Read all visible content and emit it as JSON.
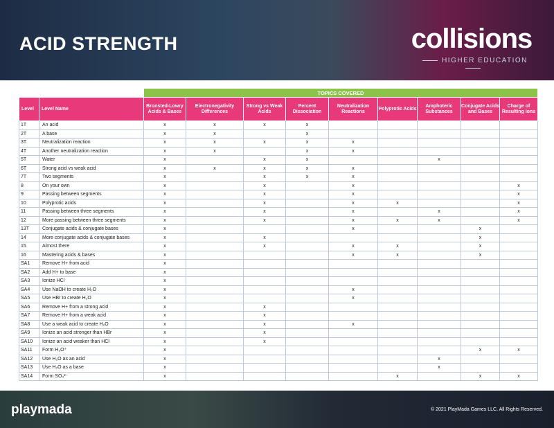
{
  "header": {
    "title": "ACID STRENGTH",
    "logo": "collisions",
    "logo_subtitle": "HIGHER EDUCATION"
  },
  "table": {
    "topics_label": "TOPICS COVERED",
    "columns": [
      "Level",
      "Level Name",
      "Bronsted-Lowry Acids & Bases",
      "Electronegativity Differences",
      "Strong vs Weak Acids",
      "Percent Dissociation",
      "Neutralization Reactions",
      "Polyprotic Acids",
      "Amphoteric Substances",
      "Conjugate Acids and Bases",
      "Charge of Resulting Ions"
    ],
    "rows": [
      {
        "level": "1T",
        "name": "An acid",
        "cells": [
          "x",
          "x",
          "x",
          "x",
          null,
          null,
          null,
          null,
          null
        ]
      },
      {
        "level": "2T",
        "name": "A base",
        "cells": [
          "x",
          "x",
          null,
          "x",
          null,
          null,
          null,
          null,
          null
        ]
      },
      {
        "level": "3T",
        "name": "Neutralization reaction",
        "cells": [
          "x",
          "x",
          "x",
          "x",
          "x",
          null,
          null,
          null,
          null
        ]
      },
      {
        "level": "4T",
        "name": "Another neutralization reaction",
        "cells": [
          "x",
          "x",
          null,
          "x",
          "x",
          null,
          null,
          null,
          null
        ]
      },
      {
        "level": "5T",
        "name": "Water",
        "cells": [
          "x",
          null,
          "x",
          "x",
          null,
          null,
          "x",
          null,
          null
        ]
      },
      {
        "level": "6T",
        "name": "Strong acid vs weak acid",
        "cells": [
          "x",
          "x",
          "x",
          "x",
          "x",
          null,
          null,
          null,
          null
        ]
      },
      {
        "level": "7T",
        "name": "Two segments",
        "cells": [
          "x",
          null,
          "x",
          "x",
          "x",
          null,
          null,
          null,
          null
        ]
      },
      {
        "level": "8",
        "name": "On your own",
        "cells": [
          "x",
          null,
          "x",
          null,
          "x",
          null,
          null,
          null,
          "x"
        ]
      },
      {
        "level": "9",
        "name": "Passing between segments",
        "cells": [
          "x",
          null,
          "x",
          null,
          "x",
          null,
          null,
          null,
          "x"
        ]
      },
      {
        "level": "10",
        "name": "Polyprotic acids",
        "cells": [
          "x",
          null,
          "x",
          null,
          "x",
          "x",
          null,
          null,
          "x"
        ]
      },
      {
        "level": "11",
        "name": "Passing between three segments",
        "cells": [
          "x",
          null,
          "x",
          null,
          "x",
          null,
          "x",
          null,
          "x"
        ]
      },
      {
        "level": "12",
        "name": "More passing between three segments",
        "cells": [
          "x",
          null,
          "x",
          null,
          "x",
          "x",
          "x",
          null,
          "x"
        ]
      },
      {
        "level": "13T",
        "name": "Conjugate acids & conjugate bases",
        "cells": [
          "x",
          null,
          null,
          null,
          "x",
          null,
          null,
          "x",
          null
        ]
      },
      {
        "level": "14",
        "name": "More conjugate acids & conjugate bases",
        "cells": [
          "x",
          null,
          "x",
          null,
          null,
          null,
          null,
          "x",
          null
        ]
      },
      {
        "level": "15",
        "name": "Almost there",
        "cells": [
          "x",
          null,
          "x",
          null,
          "x",
          "x",
          null,
          "x",
          null
        ]
      },
      {
        "level": "16",
        "name": "Mastering acids & bases",
        "cells": [
          "x",
          null,
          null,
          null,
          "x",
          "x",
          null,
          "x",
          null
        ]
      },
      {
        "level": "SA1",
        "name": "Remove H+ from acid",
        "cells": [
          "x",
          null,
          null,
          null,
          null,
          null,
          null,
          null,
          null
        ]
      },
      {
        "level": "SA2",
        "name": "Add H+ to base",
        "cells": [
          "x",
          null,
          null,
          null,
          null,
          null,
          null,
          null,
          null
        ]
      },
      {
        "level": "SA3",
        "name": "Ionize HCl",
        "cells": [
          "x",
          null,
          null,
          null,
          null,
          null,
          null,
          null,
          null
        ]
      },
      {
        "level": "SA4",
        "name": "Use NaOH to create H₂O",
        "cells": [
          "x",
          null,
          null,
          null,
          "x",
          null,
          null,
          null,
          null
        ]
      },
      {
        "level": "SA5",
        "name": "Use HBr to create H₂O",
        "cells": [
          "x",
          null,
          null,
          null,
          "x",
          null,
          null,
          null,
          null
        ]
      },
      {
        "level": "SA6",
        "name": "Remove H+ from a strong acid",
        "cells": [
          "x",
          null,
          "x",
          null,
          null,
          null,
          null,
          null,
          null
        ]
      },
      {
        "level": "SA7",
        "name": "Remove H+ from a weak acid",
        "cells": [
          "x",
          null,
          "x",
          null,
          null,
          null,
          null,
          null,
          null
        ]
      },
      {
        "level": "SA8",
        "name": "Use a weak acid to create H₂O",
        "cells": [
          "x",
          null,
          "x",
          null,
          "x",
          null,
          null,
          null,
          null
        ]
      },
      {
        "level": "SA9",
        "name": "Ionize an acid stronger than HBr",
        "cells": [
          "x",
          null,
          "x",
          null,
          null,
          null,
          null,
          null,
          null
        ]
      },
      {
        "level": "SA10",
        "name": "Ionize an acid weaker than HCl",
        "cells": [
          "x",
          null,
          "x",
          null,
          null,
          null,
          null,
          null,
          null
        ]
      },
      {
        "level": "SA11",
        "name": "Form H₃O⁺",
        "cells": [
          "x",
          null,
          null,
          null,
          null,
          null,
          null,
          "x",
          "x"
        ]
      },
      {
        "level": "SA12",
        "name": "Use H₂O as an acid",
        "cells": [
          "x",
          null,
          null,
          null,
          null,
          null,
          "x",
          null,
          null
        ]
      },
      {
        "level": "SA13",
        "name": "Use H₂O as a base",
        "cells": [
          "x",
          null,
          null,
          null,
          null,
          null,
          "x",
          null,
          null
        ]
      },
      {
        "level": "SA14",
        "name": "Form SO₄²⁻",
        "cells": [
          "x",
          null,
          null,
          null,
          null,
          "x",
          null,
          "x",
          "x"
        ]
      }
    ]
  },
  "footer": {
    "brand": "playmada",
    "copyright": "© 2021 PlayMada Games LLC. All Rights Reserved."
  }
}
